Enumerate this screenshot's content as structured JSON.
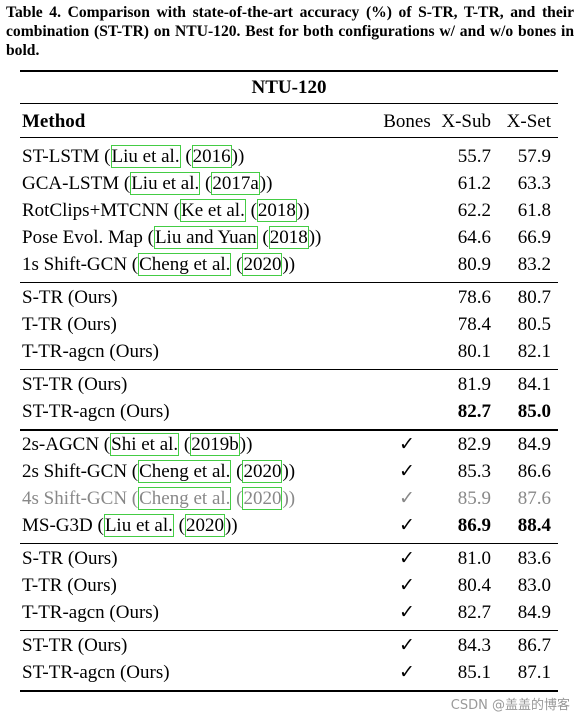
{
  "caption": "Table 4. Comparison with state-of-the-art accuracy (%) of S-TR, T-TR, and their combination (ST-TR) on NTU-120. Best for both configurations w/ and w/o bones in bold.",
  "table": {
    "title": "NTU-120",
    "header": {
      "method": "Method",
      "bones": "Bones",
      "x_sub": "X-Sub",
      "x_set": "X-Set"
    },
    "groups": [
      {
        "rows": [
          {
            "method": [
              "ST-LSTM (",
              "Liu et al.",
              " (",
              "2016",
              "))"
            ],
            "x_sub": "55.7",
            "x_set": "57.9"
          },
          {
            "method": [
              "GCA-LSTM (",
              "Liu et al.",
              " (",
              "2017a",
              "))"
            ],
            "x_sub": "61.2",
            "x_set": "63.3"
          },
          {
            "method": [
              "RotClips+MTCNN (",
              "Ke et al.",
              " (",
              "2018",
              "))"
            ],
            "x_sub": "62.2",
            "x_set": "61.8"
          },
          {
            "method": [
              "Pose Evol. Map (",
              "Liu and Yuan",
              " (",
              "2018",
              "))"
            ],
            "x_sub": "64.6",
            "x_set": "66.9"
          },
          {
            "method": [
              "1s Shift-GCN (",
              "Cheng et al.",
              " (",
              "2020",
              "))"
            ],
            "x_sub": "80.9",
            "x_set": "83.2"
          }
        ]
      },
      {
        "rows": [
          {
            "method": [
              "S-TR (Ours)"
            ],
            "x_sub": "78.6",
            "x_set": "80.7"
          },
          {
            "method": [
              "T-TR (Ours)"
            ],
            "x_sub": "78.4",
            "x_set": "80.5"
          },
          {
            "method": [
              "T-TR-agcn (Ours)"
            ],
            "x_sub": "80.1",
            "x_set": "82.1"
          }
        ]
      },
      {
        "rows": [
          {
            "method": [
              "ST-TR (Ours)"
            ],
            "x_sub": "81.9",
            "x_set": "84.1"
          },
          {
            "method": [
              "ST-TR-agcn (Ours)"
            ],
            "x_sub": "82.7",
            "x_set": "85.0",
            "bold": true
          }
        ],
        "thick_rule_after": true
      },
      {
        "rows": [
          {
            "method": [
              "2s-AGCN (",
              "Shi et al.",
              " (",
              "2019b",
              "))"
            ],
            "bones": "✓",
            "x_sub": "82.9",
            "x_set": "84.9"
          },
          {
            "method": [
              "2s Shift-GCN (",
              "Cheng et al.",
              " (",
              "2020",
              "))"
            ],
            "bones": "✓",
            "x_sub": "85.3",
            "x_set": "86.6"
          },
          {
            "method": [
              "4s Shift-GCN (",
              "Cheng et al.",
              " (",
              "2020",
              "))"
            ],
            "bones": "✓",
            "x_sub": "85.9",
            "x_set": "87.6",
            "muted": true
          },
          {
            "method": [
              "MS-G3D (",
              "Liu et al.",
              " (",
              "2020",
              "))"
            ],
            "bones": "✓",
            "x_sub": "86.9",
            "x_set": "88.4",
            "bold": true
          }
        ]
      },
      {
        "rows": [
          {
            "method": [
              "S-TR (Ours)"
            ],
            "bones": "✓",
            "x_sub": "81.0",
            "x_set": "83.6"
          },
          {
            "method": [
              "T-TR (Ours)"
            ],
            "bones": "✓",
            "x_sub": "80.4",
            "x_set": "83.0"
          },
          {
            "method": [
              "T-TR-agcn (Ours)"
            ],
            "bones": "✓",
            "x_sub": "82.7",
            "x_set": "84.9"
          }
        ]
      },
      {
        "rows": [
          {
            "method": [
              "ST-TR (Ours)"
            ],
            "bones": "✓",
            "x_sub": "84.3",
            "x_set": "86.7"
          },
          {
            "method": [
              "ST-TR-agcn (Ours)"
            ],
            "bones": "✓",
            "x_sub": "85.1",
            "x_set": "87.1"
          }
        ]
      }
    ]
  },
  "watermark": "CSDN @盖盖的博客"
}
